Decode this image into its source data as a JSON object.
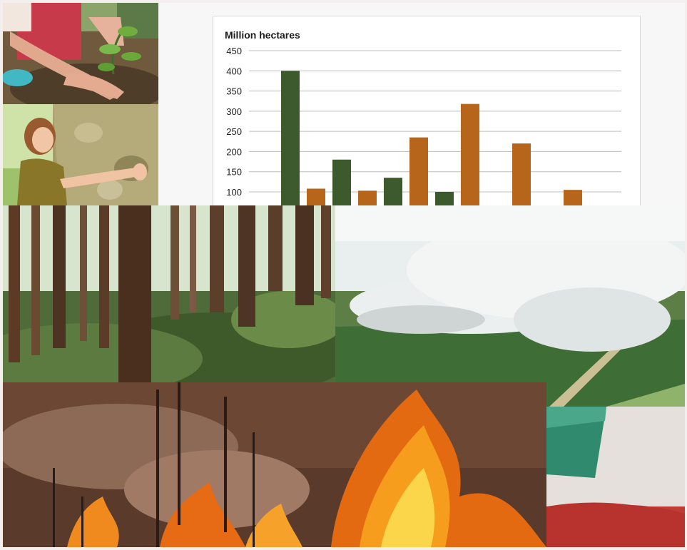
{
  "chart_data": {
    "type": "bar",
    "ylabel": "Million hectares",
    "y_ticks": [
      100,
      150,
      200,
      250,
      300,
      350,
      400,
      450
    ],
    "ylim_visible": [
      100,
      450
    ],
    "series_colors": {
      "dark_green": "#3d5a2c",
      "orange": "#b8651c"
    },
    "bars": [
      {
        "series": "dark_green",
        "value": 400
      },
      {
        "series": "orange",
        "value": 108
      },
      {
        "series": "dark_green",
        "value": 180
      },
      {
        "series": "orange",
        "value": 103
      },
      {
        "series": "dark_green",
        "value": 135
      },
      {
        "series": "orange",
        "value": 235
      },
      {
        "series": "dark_green",
        "value": 100
      },
      {
        "series": "orange",
        "value": 318
      },
      {
        "series": "orange",
        "value": 220
      },
      {
        "series": "orange",
        "value": 105
      }
    ]
  },
  "photos": [
    {
      "name": "tree-planting-photo"
    },
    {
      "name": "tree-hug-photo"
    },
    {
      "name": "forest-photo"
    },
    {
      "name": "smoke-plantation-photo"
    },
    {
      "name": "wildfire-photo"
    },
    {
      "name": "book-cover-photo"
    }
  ]
}
